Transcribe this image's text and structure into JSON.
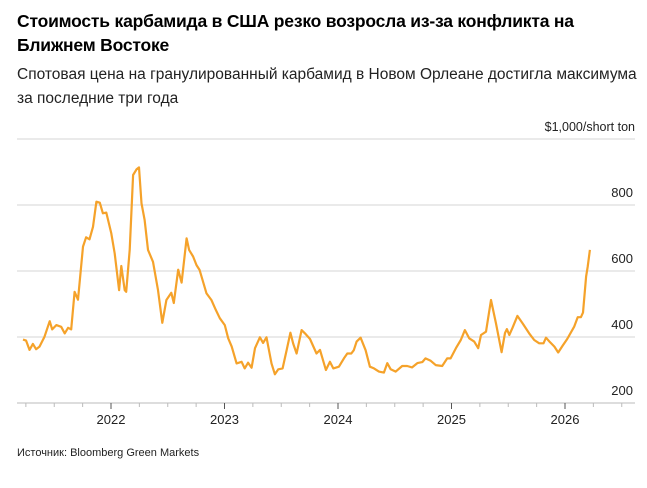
{
  "chart_data": {
    "type": "line",
    "title": "Стоимость карбамида в США резко возросла из-за конфликта на Ближнем Востоке",
    "subtitle": "Спотовая цена на гранулированный карбамид в Новом Орлеане достигла максимума за последние три года",
    "ylabel": "$1,000/short ton",
    "xlabel": "",
    "ylim": [
      200,
      1000
    ],
    "yticks": [
      200,
      400,
      600,
      800
    ],
    "xticks": [
      "2022",
      "2023",
      "2024",
      "2025",
      "2026"
    ],
    "grid": true,
    "y_axis_side": "right",
    "line_color": "#f5a22a",
    "source": "Источник: Bloomberg Green Markets",
    "series": [
      {
        "points": [
          [
            "2021-03-24",
            392
          ],
          [
            "2021-04-03",
            389
          ],
          [
            "2021-04-14",
            361
          ],
          [
            "2021-04-25",
            379
          ],
          [
            "2021-05-05",
            363
          ],
          [
            "2021-05-16",
            371
          ],
          [
            "2021-06-01",
            401
          ],
          [
            "2021-06-18",
            448
          ],
          [
            "2021-06-26",
            423
          ],
          [
            "2021-07-09",
            436
          ],
          [
            "2021-07-25",
            431
          ],
          [
            "2021-08-05",
            411
          ],
          [
            "2021-08-16",
            428
          ],
          [
            "2021-08-26",
            423
          ],
          [
            "2021-09-06",
            537
          ],
          [
            "2021-09-17",
            513
          ],
          [
            "2021-10-03",
            674
          ],
          [
            "2021-10-13",
            702
          ],
          [
            "2021-10-24",
            696
          ],
          [
            "2021-11-04",
            734
          ],
          [
            "2021-11-15",
            810
          ],
          [
            "2021-11-26",
            807
          ],
          [
            "2021-12-06",
            775
          ],
          [
            "2021-12-17",
            777
          ],
          [
            "2022-01-02",
            714
          ],
          [
            "2022-01-13",
            653
          ],
          [
            "2022-01-27",
            542
          ],
          [
            "2022-02-03",
            615
          ],
          [
            "2022-02-14",
            542
          ],
          [
            "2022-02-19",
            537
          ],
          [
            "2022-03-02",
            664
          ],
          [
            "2022-03-13",
            891
          ],
          [
            "2022-03-24",
            908
          ],
          [
            "2022-04-01",
            914
          ],
          [
            "2022-04-09",
            805
          ],
          [
            "2022-04-19",
            755
          ],
          [
            "2022-04-30",
            664
          ],
          [
            "2022-05-16",
            628
          ],
          [
            "2022-06-01",
            542
          ],
          [
            "2022-06-15",
            443
          ],
          [
            "2022-06-28",
            512
          ],
          [
            "2022-07-14",
            534
          ],
          [
            "2022-07-22",
            503
          ],
          [
            "2022-08-05",
            604
          ],
          [
            "2022-08-16",
            565
          ],
          [
            "2022-09-01",
            699
          ],
          [
            "2022-09-09",
            664
          ],
          [
            "2022-09-22",
            644
          ],
          [
            "2022-10-03",
            618
          ],
          [
            "2022-10-13",
            603
          ],
          [
            "2022-11-04",
            532
          ],
          [
            "2022-11-20",
            512
          ],
          [
            "2022-12-04",
            482
          ],
          [
            "2022-12-17",
            457
          ],
          [
            "2023-01-02",
            436
          ],
          [
            "2023-01-13",
            396
          ],
          [
            "2023-01-24",
            371
          ],
          [
            "2023-02-09",
            320
          ],
          [
            "2023-02-25",
            325
          ],
          [
            "2023-03-07",
            305
          ],
          [
            "2023-03-18",
            322
          ],
          [
            "2023-03-29",
            307
          ],
          [
            "2023-04-09",
            366
          ],
          [
            "2023-04-25",
            399
          ],
          [
            "2023-05-05",
            382
          ],
          [
            "2023-05-16",
            399
          ],
          [
            "2023-06-01",
            320
          ],
          [
            "2023-06-12",
            287
          ],
          [
            "2023-06-23",
            302
          ],
          [
            "2023-07-07",
            305
          ],
          [
            "2023-07-20",
            361
          ],
          [
            "2023-08-01",
            413
          ],
          [
            "2023-08-10",
            380
          ],
          [
            "2023-08-21",
            350
          ],
          [
            "2023-09-06",
            421
          ],
          [
            "2023-09-17",
            411
          ],
          [
            "2023-10-03",
            394
          ],
          [
            "2023-10-24",
            350
          ],
          [
            "2023-11-04",
            361
          ],
          [
            "2023-11-23",
            300
          ],
          [
            "2023-12-06",
            325
          ],
          [
            "2023-12-17",
            305
          ],
          [
            "2024-01-04",
            310
          ],
          [
            "2024-01-20",
            335
          ],
          [
            "2024-01-31",
            350
          ],
          [
            "2024-02-13",
            350
          ],
          [
            "2024-02-21",
            360
          ],
          [
            "2024-03-01",
            386
          ],
          [
            "2024-03-14",
            398
          ],
          [
            "2024-03-30",
            360
          ],
          [
            "2024-04-13",
            310
          ],
          [
            "2024-04-26",
            305
          ],
          [
            "2024-05-12",
            295
          ],
          [
            "2024-05-28",
            292
          ],
          [
            "2024-06-08",
            321
          ],
          [
            "2024-06-19",
            302
          ],
          [
            "2024-07-05",
            295
          ],
          [
            "2024-07-26",
            312
          ],
          [
            "2024-08-11",
            312
          ],
          [
            "2024-08-27",
            308
          ],
          [
            "2024-09-13",
            321
          ],
          [
            "2024-09-29",
            324
          ],
          [
            "2024-10-09",
            335
          ],
          [
            "2024-10-26",
            328
          ],
          [
            "2024-11-11",
            315
          ],
          [
            "2024-12-02",
            312
          ],
          [
            "2024-12-18",
            335
          ],
          [
            "2024-12-29",
            335
          ],
          [
            "2025-01-15",
            366
          ],
          [
            "2025-01-31",
            391
          ],
          [
            "2025-02-13",
            421
          ],
          [
            "2025-02-27",
            396
          ],
          [
            "2025-03-15",
            386
          ],
          [
            "2025-03-28",
            366
          ],
          [
            "2025-04-06",
            406
          ],
          [
            "2025-04-22",
            416
          ],
          [
            "2025-05-08",
            512
          ],
          [
            "2025-05-24",
            441
          ],
          [
            "2025-06-11",
            354
          ],
          [
            "2025-06-22",
            412
          ],
          [
            "2025-06-28",
            424
          ],
          [
            "2025-07-06",
            406
          ],
          [
            "2025-07-16",
            427
          ],
          [
            "2025-08-01",
            464
          ],
          [
            "2025-08-18",
            441
          ],
          [
            "2025-09-08",
            411
          ],
          [
            "2025-09-24",
            391
          ],
          [
            "2025-10-10",
            381
          ],
          [
            "2025-10-24",
            381
          ],
          [
            "2025-11-01",
            398
          ],
          [
            "2025-11-12",
            386
          ],
          [
            "2025-11-28",
            371
          ],
          [
            "2025-12-10",
            353
          ],
          [
            "2025-12-24",
            373
          ],
          [
            "2026-01-08",
            394
          ],
          [
            "2026-01-31",
            432
          ],
          [
            "2026-02-11",
            460
          ],
          [
            "2026-02-21",
            460
          ],
          [
            "2026-02-28",
            474
          ],
          [
            "2026-03-10",
            583
          ],
          [
            "2026-03-15",
            613
          ],
          [
            "2026-03-22",
            664
          ]
        ]
      }
    ]
  }
}
